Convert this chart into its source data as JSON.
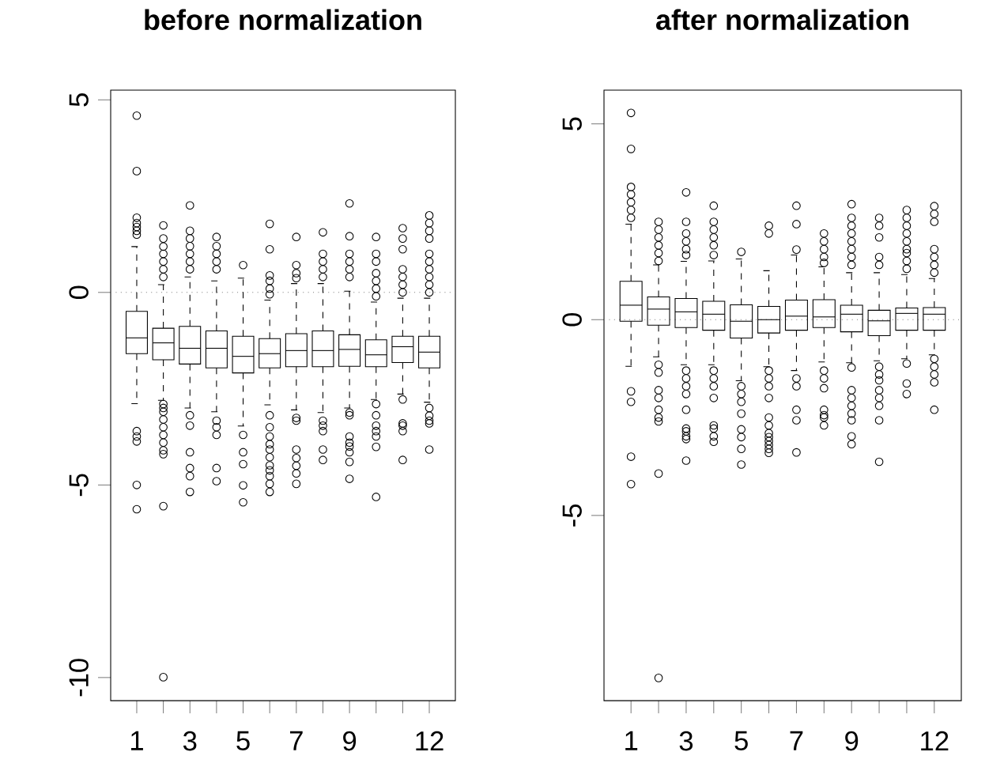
{
  "chart_data": [
    {
      "type": "box",
      "title": "before normalization",
      "categories": [
        "1",
        null,
        "3",
        null,
        "5",
        null,
        "7",
        null,
        "9",
        null,
        null,
        "12"
      ],
      "color": "#000000",
      "marker": "circle",
      "ylim": [
        -10.6,
        5.25
      ],
      "yticks": [
        -10,
        -5,
        0,
        5
      ],
      "ref_lines": [
        {
          "axis": "y",
          "value": 0,
          "color": "#808080",
          "line_style": "dotted"
        }
      ],
      "boxes": [
        {
          "low": -2.89,
          "q1": -1.59,
          "median": -1.18,
          "q3": -0.49,
          "high": 1.19,
          "outliers": [
            4.59,
            3.15,
            1.94,
            1.8,
            1.7,
            1.6,
            1.5,
            -3.6,
            -3.74,
            -3.87,
            -5.0,
            -5.63
          ]
        },
        {
          "low": -2.8,
          "q1": -1.75,
          "median": -1.31,
          "q3": -0.93,
          "high": 0.2,
          "outliers": [
            1.74,
            1.4,
            1.19,
            1.0,
            0.8,
            0.6,
            0.4,
            -2.9,
            -3.0,
            -3.1,
            -3.3,
            -3.5,
            -3.7,
            -3.9,
            -4.1,
            -4.2,
            -5.55,
            -9.99
          ]
        },
        {
          "low": -3.0,
          "q1": -1.86,
          "median": -1.45,
          "q3": -0.88,
          "high": 0.4,
          "outliers": [
            2.26,
            1.6,
            1.4,
            1.2,
            1.0,
            0.8,
            0.6,
            -3.19,
            -3.46,
            -4.15,
            -4.56,
            -4.77,
            -5.18
          ]
        },
        {
          "low": -3.1,
          "q1": -1.96,
          "median": -1.45,
          "q3": -1.0,
          "high": 0.3,
          "outliers": [
            1.44,
            1.2,
            1.0,
            0.8,
            0.6,
            -3.33,
            -3.5,
            -3.7,
            -4.56,
            -4.9
          ]
        },
        {
          "low": -3.47,
          "q1": -2.09,
          "median": -1.66,
          "q3": -1.14,
          "high": 0.37,
          "outliers": [
            0.71,
            -3.7,
            -4.15,
            -4.46,
            -5.01,
            -5.45
          ]
        },
        {
          "low": -2.92,
          "q1": -1.96,
          "median": -1.59,
          "q3": -1.2,
          "high": -0.2,
          "outliers": [
            1.78,
            1.12,
            0.44,
            0.3,
            0.1,
            -0.05,
            -3.19,
            -3.5,
            -3.74,
            -3.94,
            -4.08,
            -4.28,
            -4.49,
            -4.62,
            -4.77,
            -4.97,
            -5.18
          ]
        },
        {
          "low": -3.05,
          "q1": -1.93,
          "median": -1.51,
          "q3": -1.07,
          "high": 0.23,
          "outliers": [
            1.44,
            0.71,
            0.5,
            0.37,
            -3.26,
            -3.33,
            -4.08,
            -4.3,
            -4.5,
            -4.7,
            -4.97
          ]
        },
        {
          "low": -3.12,
          "q1": -1.93,
          "median": -1.51,
          "q3": -1.0,
          "high": 0.23,
          "outliers": [
            1.56,
            1.0,
            0.8,
            0.6,
            0.4,
            -3.33,
            -3.46,
            -3.6,
            -4.08,
            -4.35
          ]
        },
        {
          "low": -3.0,
          "q1": -1.92,
          "median": -1.48,
          "q3": -1.1,
          "high": 0.03,
          "outliers": [
            2.31,
            1.46,
            1.0,
            0.8,
            0.6,
            0.4,
            -3.12,
            -3.19,
            -3.74,
            -3.9,
            -4.0,
            -4.15,
            -4.4,
            -4.84
          ]
        },
        {
          "low": -2.78,
          "q1": -1.93,
          "median": -1.62,
          "q3": -1.23,
          "high": -0.25,
          "outliers": [
            1.44,
            1.0,
            0.8,
            0.5,
            0.3,
            0.1,
            -0.1,
            -2.9,
            -3.19,
            -3.46,
            -3.6,
            -3.74,
            -4.01,
            -5.31
          ]
        },
        {
          "low": -2.64,
          "q1": -1.82,
          "median": -1.41,
          "q3": -1.14,
          "high": -0.15,
          "outliers": [
            1.67,
            1.4,
            1.12,
            0.6,
            0.4,
            0.2,
            0.0,
            -2.78,
            -3.4,
            -3.46,
            -3.6,
            -4.35
          ]
        },
        {
          "low": -2.85,
          "q1": -1.96,
          "median": -1.55,
          "q3": -1.14,
          "high": -0.15,
          "outliers": [
            2.0,
            1.8,
            1.6,
            1.4,
            1.0,
            0.8,
            0.6,
            0.4,
            0.2,
            0.0,
            -3.0,
            -3.2,
            -3.33,
            -3.4,
            -4.08
          ]
        }
      ]
    },
    {
      "type": "box",
      "title": "after normalization",
      "categories": [
        "1",
        null,
        "3",
        null,
        "5",
        null,
        "7",
        null,
        "9",
        null,
        null,
        "12"
      ],
      "color": "#000000",
      "marker": "circle",
      "ylim": [
        -9.73,
        5.86
      ],
      "yticks": [
        -5,
        0,
        5
      ],
      "ref_lines": [
        {
          "axis": "y",
          "value": 0,
          "color": "#808080",
          "line_style": "dotted"
        }
      ],
      "boxes": [
        {
          "low": -1.19,
          "q1": -0.04,
          "median": 0.37,
          "q3": 0.98,
          "high": 2.44,
          "outliers": [
            5.28,
            4.36,
            3.39,
            3.2,
            3.0,
            2.8,
            2.6,
            -1.83,
            -2.1,
            -3.5,
            -4.2
          ]
        },
        {
          "low": -0.95,
          "q1": -0.14,
          "median": 0.27,
          "q3": 0.58,
          "high": 1.4,
          "outliers": [
            2.5,
            2.3,
            2.1,
            1.9,
            1.7,
            1.5,
            -1.15,
            -1.35,
            -1.8,
            -2.0,
            -2.3,
            -2.5,
            -2.6,
            -3.93,
            -9.15
          ]
        },
        {
          "low": -1.15,
          "q1": -0.2,
          "median": 0.2,
          "q3": 0.54,
          "high": 1.49,
          "outliers": [
            3.25,
            2.5,
            2.2,
            2.0,
            1.8,
            1.65,
            -1.3,
            -1.5,
            -1.7,
            -1.9,
            -2.3,
            -2.78,
            -2.85,
            -2.98,
            -3.05,
            -3.6
          ]
        },
        {
          "low": -1.15,
          "q1": -0.27,
          "median": 0.14,
          "q3": 0.47,
          "high": 1.5,
          "outliers": [
            2.91,
            2.5,
            2.3,
            2.1,
            1.9,
            1.65,
            -1.3,
            -1.5,
            -1.7,
            -2.0,
            -2.7,
            -2.78,
            -2.98,
            -3.12
          ]
        },
        {
          "low": -1.56,
          "q1": -0.47,
          "median": -0.04,
          "q3": 0.38,
          "high": 1.55,
          "outliers": [
            1.73,
            -1.7,
            -1.9,
            -2.1,
            -2.4,
            -2.8,
            -3.0,
            -3.3,
            -3.7
          ]
        },
        {
          "low": -1.2,
          "q1": -0.34,
          "median": 0.0,
          "q3": 0.34,
          "high": 1.25,
          "outliers": [
            2.4,
            2.2,
            -1.3,
            -1.5,
            -1.7,
            -2.0,
            -2.5,
            -2.7,
            -2.9,
            -3.0,
            -3.1,
            -3.2,
            -3.3,
            -3.4
          ]
        },
        {
          "low": -1.3,
          "q1": -0.27,
          "median": 0.09,
          "q3": 0.5,
          "high": 1.65,
          "outliers": [
            2.91,
            2.44,
            1.79,
            -1.5,
            -1.7,
            -2.3,
            -2.57,
            -3.39
          ]
        },
        {
          "low": -1.08,
          "q1": -0.2,
          "median": 0.07,
          "q3": 0.51,
          "high": 1.35,
          "outliers": [
            2.2,
            2.0,
            1.8,
            1.6,
            1.45,
            -1.3,
            -1.5,
            -1.75,
            -2.3,
            -2.44,
            -2.5,
            -2.7
          ]
        },
        {
          "low": -1.1,
          "q1": -0.31,
          "median": 0.14,
          "q3": 0.37,
          "high": 1.2,
          "outliers": [
            2.95,
            2.6,
            2.4,
            2.2,
            2.0,
            1.8,
            1.6,
            1.4,
            -1.22,
            -1.8,
            -2.0,
            -2.2,
            -2.4,
            -2.57,
            -2.98,
            -3.18
          ]
        },
        {
          "low": -1.05,
          "q1": -0.41,
          "median": -0.03,
          "q3": 0.24,
          "high": 1.2,
          "outliers": [
            2.6,
            2.4,
            2.1,
            1.6,
            1.4,
            -1.2,
            -1.4,
            -1.55,
            -1.8,
            -2.0,
            -2.2,
            -2.57,
            -3.63
          ]
        },
        {
          "low": -1.0,
          "q1": -0.27,
          "median": 0.16,
          "q3": 0.3,
          "high": 1.15,
          "outliers": [
            2.8,
            2.6,
            2.4,
            2.2,
            2.0,
            1.8,
            1.7,
            1.5,
            1.3,
            -1.12,
            -1.63,
            -1.9
          ]
        },
        {
          "low": -0.9,
          "q1": -0.27,
          "median": 0.14,
          "q3": 0.31,
          "high": 1.05,
          "outliers": [
            2.9,
            2.7,
            2.5,
            1.8,
            1.6,
            1.4,
            1.2,
            -1.0,
            -1.2,
            -1.4,
            -1.6,
            -2.3
          ]
        }
      ]
    }
  ]
}
